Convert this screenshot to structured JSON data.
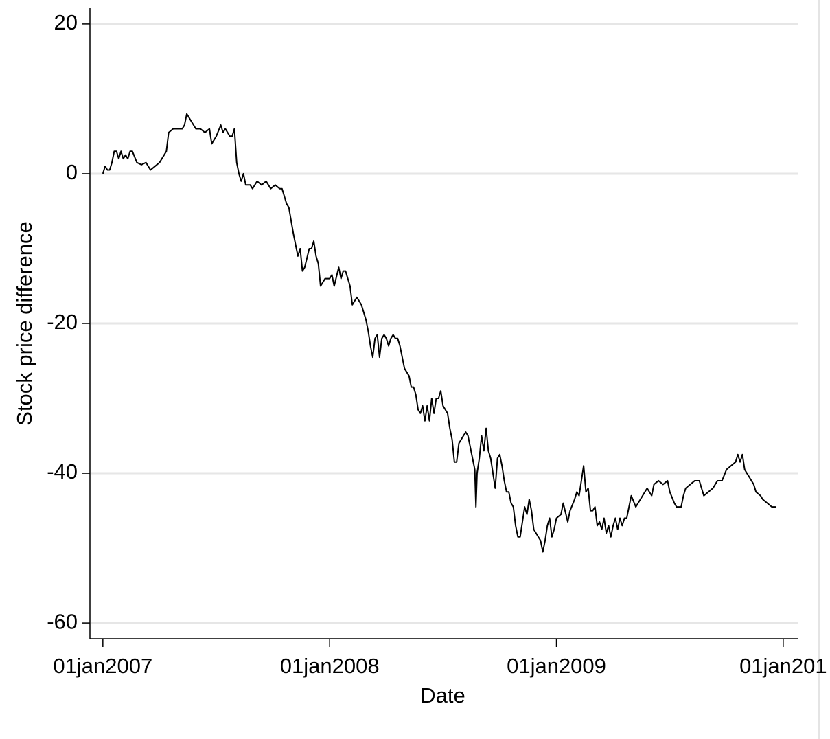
{
  "chart_data": {
    "type": "line",
    "xlabel": "Date",
    "ylabel": "Stock price difference",
    "xlim": [
      2006.943,
      2010.064
    ],
    "ylim": [
      -62.1,
      22.1
    ],
    "xticks": [
      {
        "value": 2007,
        "label": "01jan2007"
      },
      {
        "value": 2008,
        "label": "01jan2008"
      },
      {
        "value": 2009,
        "label": "01jan2009"
      },
      {
        "value": 2010,
        "label": "01jan201"
      }
    ],
    "yticks": [
      -60,
      -40,
      -20,
      0,
      20
    ],
    "grid": true,
    "series": [
      {
        "color": "#000000",
        "x": [
          2007.0,
          2007.01,
          2007.02,
          2007.03,
          2007.04,
          2007.05,
          2007.06,
          2007.07,
          2007.08,
          2007.09,
          2007.1,
          2007.11,
          2007.12,
          2007.13,
          2007.15,
          2007.17,
          2007.19,
          2007.21,
          2007.23,
          2007.25,
          2007.27,
          2007.28,
          2007.29,
          2007.31,
          2007.33,
          2007.35,
          2007.36,
          2007.37,
          2007.39,
          2007.41,
          2007.43,
          2007.45,
          2007.47,
          2007.48,
          2007.5,
          2007.52,
          2007.53,
          2007.54,
          2007.56,
          2007.57,
          2007.58,
          2007.59,
          2007.6,
          2007.61,
          2007.62,
          2007.63,
          2007.65,
          2007.66,
          2007.68,
          2007.7,
          2007.72,
          2007.74,
          2007.76,
          2007.78,
          2007.79,
          2007.81,
          2007.82,
          2007.84,
          2007.86,
          2007.87,
          2007.88,
          2007.89,
          2007.91,
          2007.92,
          2007.93,
          2007.94,
          2007.95,
          2007.96,
          2007.98,
          2008.0,
          2008.01,
          2008.02,
          2008.04,
          2008.05,
          2008.06,
          2008.07,
          2008.08,
          2008.09,
          2008.1,
          2008.11,
          2008.12,
          2008.13,
          2008.14,
          2008.16,
          2008.17,
          2008.18,
          2008.19,
          2008.2,
          2008.21,
          2008.22,
          2008.23,
          2008.24,
          2008.25,
          2008.26,
          2008.27,
          2008.28,
          2008.29,
          2008.3,
          2008.31,
          2008.32,
          2008.33,
          2008.35,
          2008.36,
          2008.37,
          2008.38,
          2008.39,
          2008.4,
          2008.41,
          2008.42,
          2008.43,
          2008.44,
          2008.45,
          2008.46,
          2008.47,
          2008.48,
          2008.49,
          2008.5,
          2008.51,
          2008.52,
          2008.53,
          2008.54,
          2008.55,
          2008.56,
          2008.57,
          2008.58,
          2008.59,
          2008.6,
          2008.61,
          2008.62,
          2008.63,
          2008.64,
          2008.645,
          2008.65,
          2008.66,
          2008.67,
          2008.68,
          2008.69,
          2008.7,
          2008.71,
          2008.72,
          2008.73,
          2008.74,
          2008.75,
          2008.76,
          2008.77,
          2008.78,
          2008.79,
          2008.8,
          2008.81,
          2008.82,
          2008.83,
          2008.84,
          2008.85,
          2008.86,
          2008.87,
          2008.88,
          2008.89,
          2008.9,
          2008.91,
          2008.92,
          2008.93,
          2008.94,
          2008.95,
          2008.96,
          2008.97,
          2008.98,
          2008.99,
          2009.0,
          2009.02,
          2009.03,
          2009.05,
          2009.06,
          2009.08,
          2009.09,
          2009.1,
          2009.11,
          2009.12,
          2009.13,
          2009.14,
          2009.15,
          2009.16,
          2009.17,
          2009.18,
          2009.19,
          2009.2,
          2009.21,
          2009.22,
          2009.23,
          2009.24,
          2009.25,
          2009.26,
          2009.27,
          2009.28,
          2009.29,
          2009.3,
          2009.31,
          2009.32,
          2009.33,
          2009.35,
          2009.36,
          2009.37,
          2009.38,
          2009.4,
          2009.42,
          2009.43,
          2009.45,
          2009.47,
          2009.49,
          2009.5,
          2009.52,
          2009.53,
          2009.55,
          2009.56,
          2009.57,
          2009.59,
          2009.61,
          2009.63,
          2009.64,
          2009.65,
          2009.67,
          2009.69,
          2009.71,
          2009.73,
          2009.75,
          2009.77,
          2009.79,
          2009.8,
          2009.81,
          2009.82,
          2009.83,
          2009.84,
          2009.85,
          2009.87,
          2009.88,
          2009.9,
          2009.91,
          2009.93,
          2009.95,
          2009.97
        ],
        "values": [
          0,
          1,
          0.5,
          0.5,
          1.5,
          3,
          3,
          2,
          3,
          2,
          2.5,
          2,
          3,
          3,
          1.5,
          1.2,
          1.5,
          0.5,
          1,
          1.5,
          2.5,
          3,
          5.5,
          6,
          6,
          6,
          6.5,
          8,
          7,
          6,
          6,
          5.5,
          6,
          4,
          5,
          6.5,
          5.5,
          6,
          5,
          5,
          6,
          1.5,
          0,
          -1,
          0,
          -1.5,
          -1.5,
          -2,
          -1,
          -1.5,
          -1,
          -2,
          -1.5,
          -2,
          -2,
          -4,
          -4.5,
          -8,
          -11,
          -10,
          -13,
          -12.5,
          -10,
          -10,
          -9,
          -11,
          -12,
          -15,
          -14,
          -14,
          -13.5,
          -15,
          -12.5,
          -14,
          -13,
          -13,
          -14,
          -15,
          -17.5,
          -17,
          -16.5,
          -17,
          -17.5,
          -19.5,
          -21,
          -23,
          -24.5,
          -22,
          -21.5,
          -24.5,
          -22,
          -21.5,
          -22,
          -23,
          -22,
          -21.5,
          -22,
          -22,
          -23,
          -24.5,
          -26,
          -27,
          -28.5,
          -28.5,
          -29.5,
          -31.5,
          -32,
          -31,
          -33,
          -31,
          -33,
          -30,
          -32,
          -30,
          -30,
          -29,
          -31,
          -31.5,
          -32,
          -34,
          -35.5,
          -38.5,
          -38.5,
          -36,
          -35.5,
          -35,
          -34.5,
          -35,
          -36.5,
          -38,
          -39.5,
          -44.5,
          -40,
          -38,
          -35,
          -37,
          -34,
          -37,
          -38,
          -40,
          -42,
          -38,
          -37.5,
          -39,
          -41,
          -42.5,
          -42.5,
          -44,
          -44.5,
          -47,
          -48.5,
          -48.5,
          -46.5,
          -44.5,
          -45.5,
          -43.5,
          -45,
          -47.5,
          -48,
          -48.5,
          -49,
          -50.5,
          -49,
          -47,
          -46,
          -48.5,
          -47.5,
          -46,
          -45.5,
          -44,
          -46.5,
          -45,
          -43.5,
          -42.5,
          -43,
          -41,
          -39,
          -42.5,
          -42,
          -45,
          -45,
          -44.5,
          -47,
          -46.5,
          -47.5,
          -46,
          -48,
          -47,
          -48.5,
          -47,
          -46,
          -47.5,
          -46,
          -47,
          -46,
          -46,
          -44.5,
          -43,
          -44.5,
          -44,
          -43.5,
          -43,
          -42,
          -43,
          -41.5,
          -41,
          -41.5,
          -41,
          -42.5,
          -44,
          -44.5,
          -44.5,
          -43,
          -42,
          -41.5,
          -41,
          -41,
          -42,
          -43,
          -42.5,
          -42,
          -41,
          -41,
          -39.5,
          -39,
          -38.5,
          -37.5,
          -38.5,
          -37.5,
          -39.5,
          -40,
          -40.5,
          -41.5,
          -42.5,
          -43,
          -43.5,
          -44,
          -44.5,
          -44.5
        ]
      }
    ]
  }
}
